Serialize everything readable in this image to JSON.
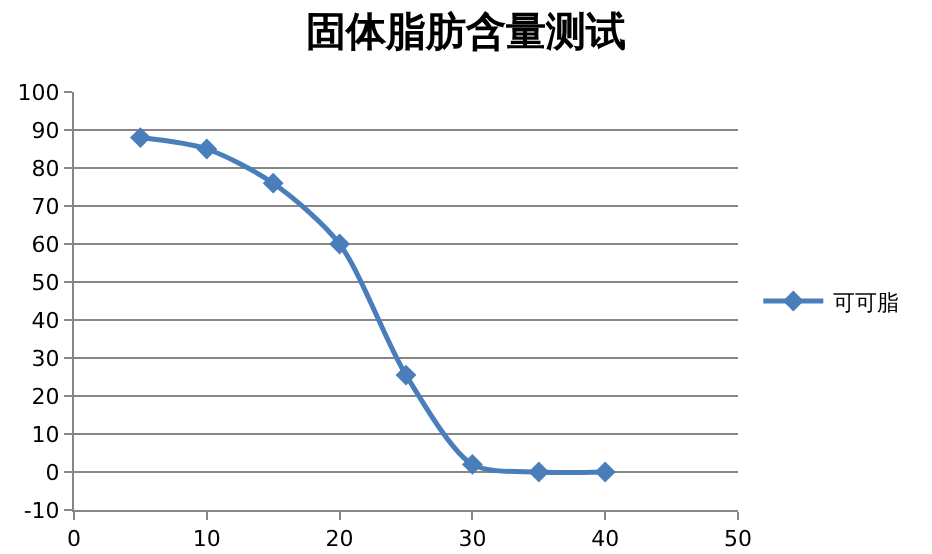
{
  "chart_data": {
    "type": "line",
    "title": "固体脂肪含量测试",
    "x": [
      5,
      10,
      15,
      20,
      25,
      30,
      35,
      40
    ],
    "series": [
      {
        "name": "可可脂",
        "color": "#4a7ebb",
        "values": [
          88,
          85,
          76,
          60,
          25.5,
          2,
          0,
          0
        ]
      }
    ],
    "xlim": [
      0,
      50
    ],
    "xticks": [
      0,
      10,
      20,
      30,
      40,
      50
    ],
    "ylim": [
      -10,
      100
    ],
    "yticks": [
      -10,
      0,
      10,
      20,
      30,
      40,
      50,
      60,
      70,
      80,
      90,
      100
    ],
    "grid": "y",
    "legend": "right",
    "marker": "diamond",
    "line_style": "solid"
  }
}
